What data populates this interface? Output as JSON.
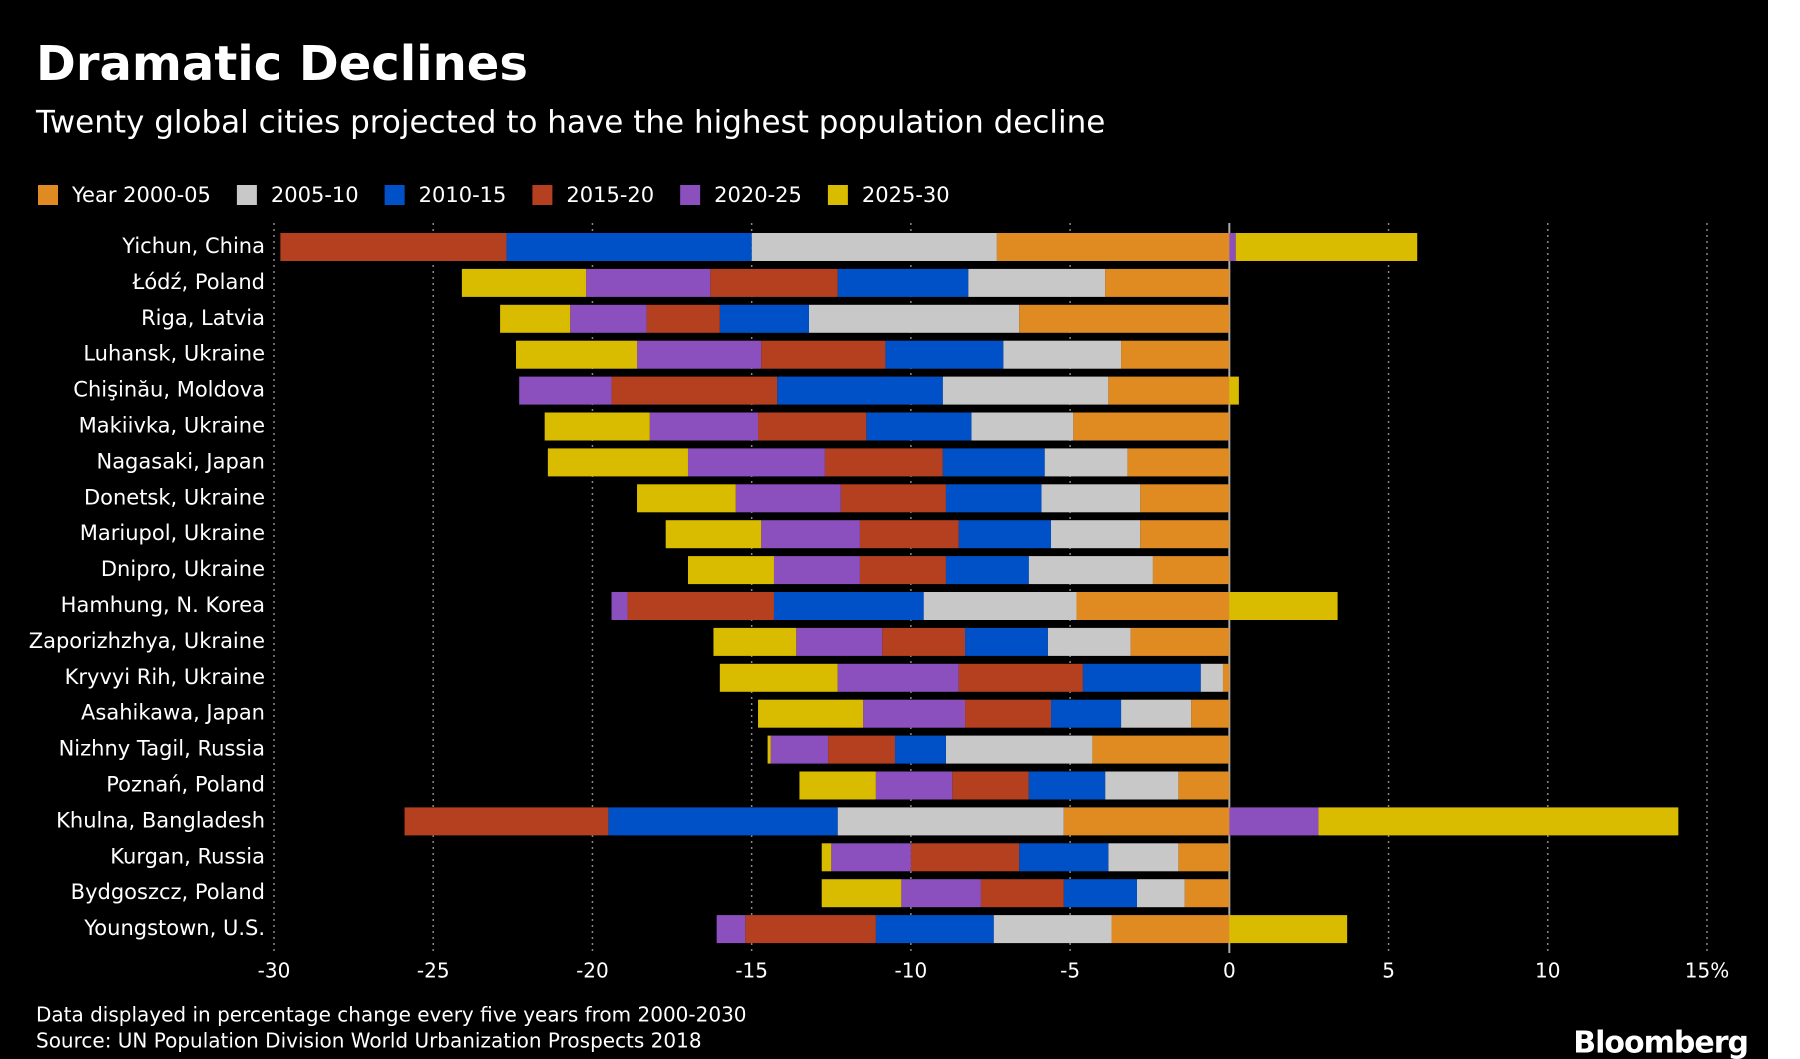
{
  "chart_data": {
    "type": "diverging-stacked-bar",
    "title": "Dramatic Declines",
    "subtitle": "Twenty global cities projected to have the highest population decline",
    "categories": [
      "Yichun, China",
      "Łódź, Poland",
      "Riga, Latvia",
      "Luhansk, Ukraine",
      "Chişinău, Moldova",
      "Makiivka, Ukraine",
      "Nagasaki, Japan",
      "Donetsk, Ukraine",
      "Mariupol, Ukraine",
      "Dnipro, Ukraine",
      "Hamhung, N. Korea",
      "Zaporizhzhya, Ukraine",
      "Kryvyi Rih, Ukraine",
      "Asahikawa, Japan",
      "Nizhny Tagil, Russia",
      "Poznań, Poland",
      "Khulna, Bangladesh",
      "Kurgan, Russia",
      "Bydgoszcz, Poland",
      "Youngstown, U.S."
    ],
    "series": [
      {
        "name": "Year 2000-05",
        "color": "#e08a22",
        "values": [
          -7.3,
          -3.9,
          -6.6,
          -3.4,
          -3.8,
          -4.9,
          -3.2,
          -2.8,
          -2.8,
          -2.4,
          -4.8,
          -3.1,
          -0.2,
          -1.2,
          -4.3,
          -1.6,
          -5.2,
          -1.6,
          -1.4,
          -3.7
        ]
      },
      {
        "name": "2005-10",
        "color": "#c8c8c8",
        "values": [
          -7.7,
          -4.3,
          -6.6,
          -3.7,
          -5.2,
          -3.2,
          -2.6,
          -3.1,
          -2.8,
          -3.9,
          -4.8,
          -2.6,
          -0.7,
          -2.2,
          -4.6,
          -2.3,
          -7.1,
          -2.2,
          -1.5,
          -3.7
        ]
      },
      {
        "name": "2010-15",
        "color": "#0050c8",
        "values": [
          -7.7,
          -4.1,
          -2.8,
          -3.7,
          -5.2,
          -3.3,
          -3.2,
          -3.0,
          -2.9,
          -2.6,
          -4.7,
          -2.6,
          -3.7,
          -2.2,
          -1.6,
          -2.4,
          -7.2,
          -2.8,
          -2.3,
          -3.7
        ]
      },
      {
        "name": "2015-20",
        "color": "#b5401f",
        "values": [
          -7.1,
          -4.0,
          -2.3,
          -3.9,
          -5.2,
          -3.4,
          -3.7,
          -3.3,
          -3.1,
          -2.7,
          -4.6,
          -2.6,
          -3.9,
          -2.7,
          -2.1,
          -2.4,
          -6.4,
          -3.4,
          -2.6,
          -4.1
        ]
      },
      {
        "name": "2020-25",
        "color": "#8c4fbe",
        "values": [
          0.2,
          -3.9,
          -2.4,
          -3.9,
          -2.9,
          -3.4,
          -4.3,
          -3.3,
          -3.1,
          -2.7,
          -0.5,
          -2.7,
          -3.8,
          -3.2,
          -1.8,
          -2.4,
          2.8,
          -2.5,
          -2.5,
          -0.9
        ]
      },
      {
        "name": "2025-30",
        "color": "#d9bb00",
        "values": [
          5.7,
          -3.9,
          -2.2,
          -3.8,
          0.3,
          -3.3,
          -4.4,
          -3.1,
          -3.0,
          -2.7,
          3.4,
          -2.6,
          -3.7,
          -3.3,
          -0.1,
          -2.4,
          11.3,
          -0.3,
          -2.5,
          3.7
        ]
      }
    ],
    "xlim": [
      -30,
      15
    ],
    "xticks": [
      -30,
      -25,
      -20,
      -15,
      -10,
      -5,
      0,
      5,
      10,
      {
        "value": 15,
        "label": "15%"
      }
    ],
    "grid": true,
    "notes": [
      "Data displayed in percentage change every five years from 2000-2030",
      "Source: UN Population Division World Urbanization Prospects 2018"
    ],
    "brand": "Bloomberg"
  }
}
